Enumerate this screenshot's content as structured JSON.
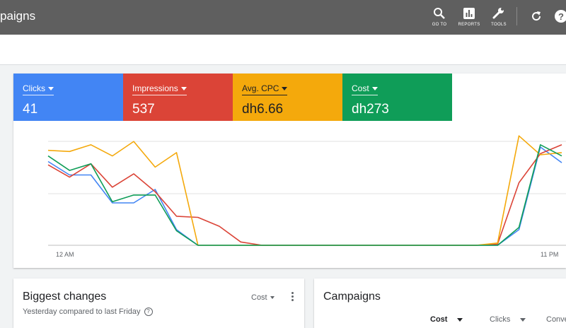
{
  "header": {
    "title": "paigns",
    "buttons": [
      {
        "label": "GO TO",
        "icon": "search-icon"
      },
      {
        "label": "REPORTS",
        "icon": "reports-icon"
      },
      {
        "label": "TOOLS",
        "icon": "tools-icon"
      }
    ],
    "refresh_icon": "refresh-icon",
    "help_icon": "help-icon"
  },
  "metrics": [
    {
      "name": "Clicks",
      "value": "41",
      "color": "#4285f4"
    },
    {
      "name": "Impressions",
      "value": "537",
      "color": "#db4437"
    },
    {
      "name": "Avg. CPC",
      "value": "dh6.66",
      "color": "#f4a90c"
    },
    {
      "name": "Cost",
      "value": "dh273",
      "color": "#0f9d58"
    }
  ],
  "chart_data": {
    "type": "line",
    "xlabel": "",
    "ylabel": "",
    "x_tick_labels": [
      "12 AM",
      "11 PM"
    ],
    "grid": true,
    "y_range": [
      0,
      1
    ],
    "series": [
      {
        "name": "Clicks",
        "color": "#4285f4",
        "values": [
          0.75,
          0.63,
          0.63,
          0.38,
          0.38,
          0.5,
          0.14,
          0,
          0,
          0,
          0,
          0,
          0,
          0,
          0,
          0,
          0,
          0,
          0,
          0,
          0,
          0,
          0.14,
          0.88,
          0.74
        ]
      },
      {
        "name": "Impressions",
        "color": "#db4437",
        "values": [
          0.72,
          0.61,
          0.73,
          0.52,
          0.64,
          0.48,
          0.26,
          0.25,
          0.17,
          0.03,
          0,
          0,
          0,
          0,
          0,
          0,
          0,
          0,
          0,
          0,
          0,
          0.01,
          0.56,
          0.82,
          0.9
        ]
      },
      {
        "name": "Avg. CPC",
        "color": "#f4a90c",
        "values": [
          0.85,
          0.84,
          0.9,
          0.8,
          0.93,
          0.7,
          0.83,
          0,
          0,
          0,
          0,
          0,
          0,
          0,
          0,
          0,
          0,
          0,
          0,
          0,
          0,
          0.02,
          0.98,
          0.81,
          0.83
        ]
      },
      {
        "name": "Cost",
        "color": "#0f9d58",
        "values": [
          0.8,
          0.67,
          0.73,
          0.39,
          0.45,
          0.45,
          0.13,
          0,
          0,
          0,
          0,
          0,
          0,
          0,
          0,
          0,
          0,
          0,
          0,
          0,
          0,
          0,
          0.16,
          0.9,
          0.8
        ]
      }
    ]
  },
  "biggest_changes": {
    "title": "Biggest changes",
    "subtitle": "Yesterday compared to last Friday",
    "sort_label": "Cost"
  },
  "campaigns": {
    "title": "Campaigns",
    "columns": [
      "Cost",
      "Clicks",
      "Conve"
    ]
  }
}
